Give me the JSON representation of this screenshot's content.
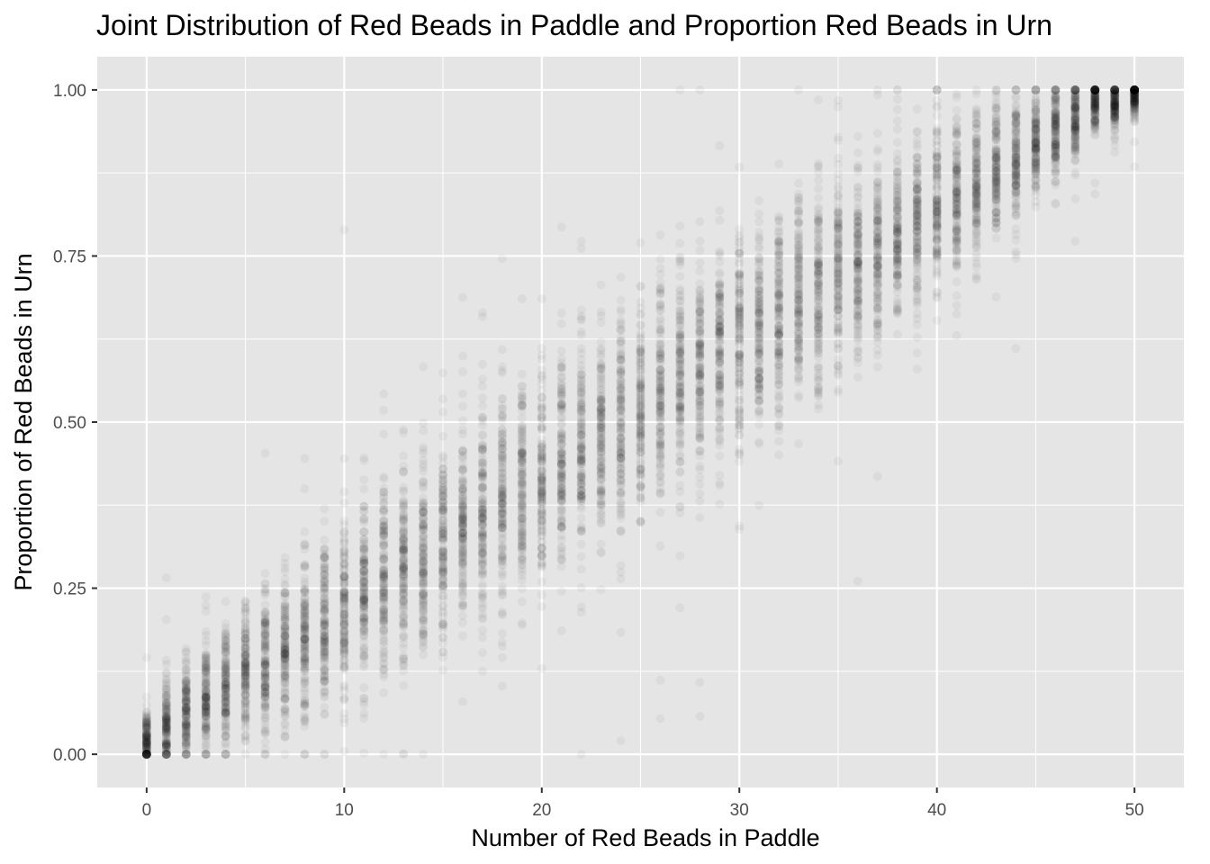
{
  "chart_data": {
    "type": "scatter",
    "title": "Joint Distribution of Red Beads in Paddle and Proportion Red Beads in Urn",
    "xlabel": "Number of Red Beads in Paddle",
    "ylabel": "Proportion of Red Beads in Urn",
    "xlim": [
      -2.5,
      52.5
    ],
    "ylim": [
      -0.05,
      1.05
    ],
    "x_ticks": [
      0,
      10,
      20,
      30,
      40,
      50
    ],
    "x_tick_labels": [
      "0",
      "10",
      "20",
      "30",
      "40",
      "50"
    ],
    "y_ticks": [
      0,
      0.25,
      0.5,
      0.75,
      1.0
    ],
    "y_tick_labels": [
      "0.00",
      "0.25",
      "0.50",
      "0.75",
      "1.00"
    ],
    "grid": true,
    "legend": "none",
    "point_color": "#000000",
    "panel_background": "#e5e5e5",
    "grid_color": "#ffffff",
    "paddle_size": 50,
    "x_values": [
      0,
      1,
      2,
      3,
      4,
      5,
      6,
      7,
      8,
      9,
      10,
      11,
      12,
      13,
      14,
      15,
      16,
      17,
      18,
      19,
      20,
      21,
      22,
      23,
      24,
      25,
      26,
      27,
      28,
      29,
      30,
      31,
      32,
      33,
      34,
      35,
      36,
      37,
      38,
      39,
      40,
      41,
      42,
      43,
      44,
      45,
      46,
      47,
      48,
      49,
      50
    ],
    "center_proportion": [
      0.02,
      0.04,
      0.06,
      0.08,
      0.1,
      0.12,
      0.14,
      0.16,
      0.18,
      0.2,
      0.22,
      0.24,
      0.26,
      0.28,
      0.3,
      0.32,
      0.34,
      0.36,
      0.38,
      0.4,
      0.42,
      0.44,
      0.46,
      0.48,
      0.5,
      0.52,
      0.54,
      0.56,
      0.58,
      0.6,
      0.62,
      0.64,
      0.66,
      0.68,
      0.7,
      0.72,
      0.74,
      0.76,
      0.78,
      0.8,
      0.82,
      0.84,
      0.86,
      0.88,
      0.9,
      0.92,
      0.94,
      0.96,
      0.98,
      0.98,
      0.99
    ]
  }
}
